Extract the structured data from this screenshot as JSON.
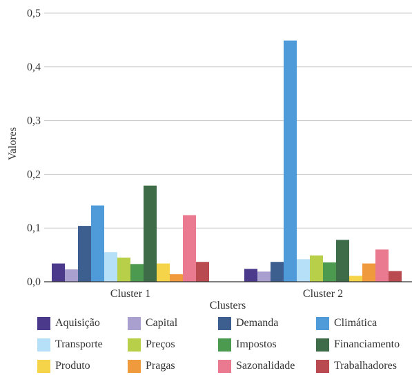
{
  "chart_data": {
    "type": "bar",
    "title": "",
    "xlabel": "Clusters",
    "ylabel": "Valores",
    "ylim": [
      0,
      0.5
    ],
    "yticks": [
      "0,0",
      "0,1",
      "0,2",
      "0,3",
      "0,4",
      "0,5"
    ],
    "ytick_values": [
      0,
      0.1,
      0.2,
      0.3,
      0.4,
      0.5
    ],
    "grid": true,
    "legend_position": "bottom",
    "categories": [
      "Cluster 1",
      "Cluster 2"
    ],
    "series": [
      {
        "name": "Aquisição",
        "color": "#4b3a8c",
        "values": [
          0.034,
          0.024
        ]
      },
      {
        "name": "Capital",
        "color": "#a9a0d0",
        "values": [
          0.023,
          0.019
        ]
      },
      {
        "name": "Demanda",
        "color": "#3d5f8f",
        "values": [
          0.104,
          0.037
        ]
      },
      {
        "name": "Climática",
        "color": "#4f9ad9",
        "values": [
          0.142,
          0.449
        ]
      },
      {
        "name": "Transporte",
        "color": "#b5e0f7",
        "values": [
          0.055,
          0.042
        ]
      },
      {
        "name": "Preços",
        "color": "#b8cf4a",
        "values": [
          0.045,
          0.049
        ]
      },
      {
        "name": "Impostos",
        "color": "#4c9a4f",
        "values": [
          0.033,
          0.036
        ]
      },
      {
        "name": "Financiamento",
        "color": "#3e6b48",
        "values": [
          0.179,
          0.078
        ]
      },
      {
        "name": "Produto",
        "color": "#f6d44a",
        "values": [
          0.034,
          0.011
        ]
      },
      {
        "name": "Pragas",
        "color": "#f09a3e",
        "values": [
          0.014,
          0.034
        ]
      },
      {
        "name": "Sazonalidade",
        "color": "#e97a8f",
        "values": [
          0.124,
          0.06
        ]
      },
      {
        "name": "Trabalhadores",
        "color": "#b94a4f",
        "values": [
          0.037,
          0.02
        ]
      }
    ]
  }
}
